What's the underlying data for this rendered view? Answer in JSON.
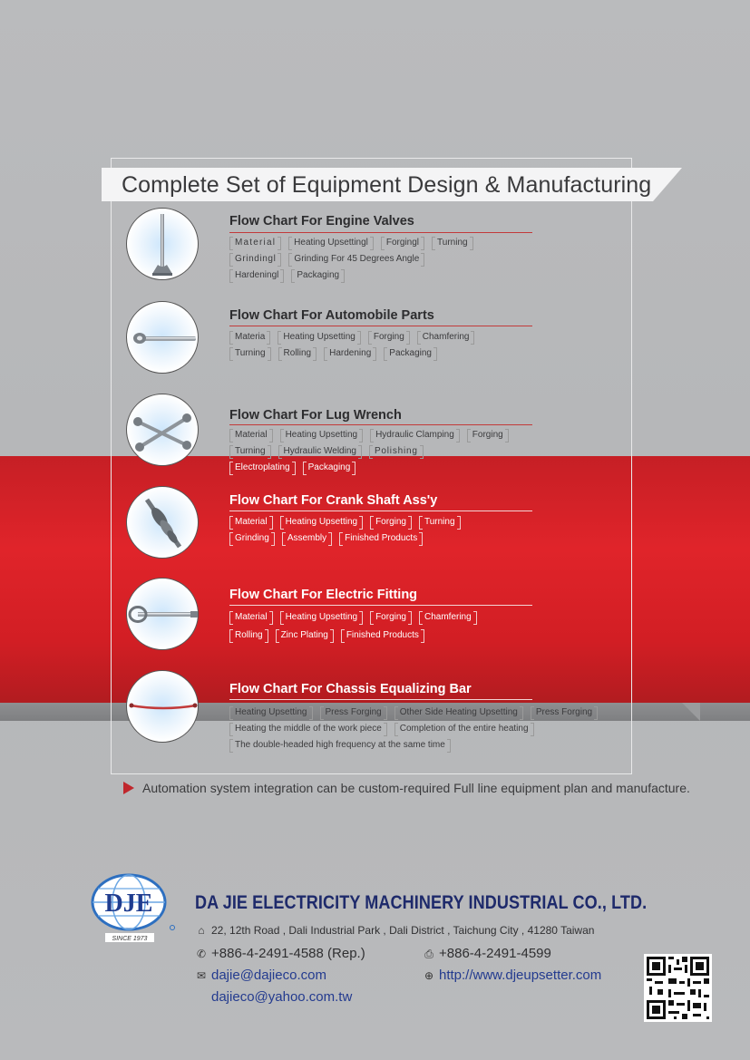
{
  "header": {
    "title": "Complete Set of Equipment Design & Manufacturing"
  },
  "sections": [
    {
      "title": "Flow Chart For Engine Valves",
      "icon": "engine-valve-icon",
      "rows": [
        [
          "Material",
          "Heating Upsettingl",
          "Forgingl",
          "Turning"
        ],
        [
          "Grindingl",
          "Grinding For 45 Degrees Angle"
        ],
        [
          "Hardeningl",
          "Packaging"
        ]
      ]
    },
    {
      "title": "Flow Chart For Automobile Parts",
      "icon": "automobile-part-icon",
      "rows": [
        [
          "Materia",
          "Heating Upsetting",
          "Forging",
          "Chamfering"
        ],
        [
          "Turning",
          "Rolling",
          "Hardening",
          "Packaging"
        ]
      ]
    },
    {
      "title": "Flow Chart For Lug Wrench",
      "icon": "lug-wrench-icon",
      "rows": [
        [
          "Material",
          "Heating Upsetting",
          "Hydraulic Clamping",
          "Forging"
        ],
        [
          "Turning",
          "Hydraulic Welding",
          "Polishing"
        ],
        [
          "Electroplating",
          "Packaging"
        ]
      ]
    },
    {
      "title": "Flow Chart For Crank Shaft Ass'y",
      "icon": "crank-shaft-icon",
      "rows": [
        [
          "Material",
          "Heating Upsetting",
          "Forging",
          "Turning"
        ],
        [
          "Grinding",
          "Assembly",
          "Finished Products"
        ]
      ]
    },
    {
      "title": "Flow Chart For Electric Fitting",
      "icon": "electric-fitting-icon",
      "rows": [
        [
          "Material",
          "Heating Upsetting",
          "Forging",
          "Chamfering"
        ],
        [
          "Rolling",
          "Zinc Plating",
          "Finished Products"
        ]
      ]
    },
    {
      "title": "Flow Chart For Chassis Equalizing Bar",
      "icon": "chassis-bar-icon",
      "rows": [
        [
          "Heating Upsetting",
          "Press Forging",
          "Other Side Heating Upsetting",
          "Press Forging"
        ],
        [
          "Heating the middle of the work piece",
          "Completion of the entire heating"
        ],
        [
          "The double-headed high frequency at the same time"
        ]
      ]
    }
  ],
  "note": "Automation system integration can be custom-required Full line equipment plan and manufacture.",
  "footer": {
    "logo_text": "DJE",
    "logo_since": "SINCE 1973",
    "company": "DA JIE ELECTRICITY MACHINERY INDUSTRIAL CO., LTD.",
    "address": "22, 12th Road , Dali Industrial Park , Dali District , Taichung City , 41280 Taiwan",
    "phone": "+886-4-2491-4588 (Rep.)",
    "fax": "+886-4-2491-4599",
    "email1": "dajie@dajieco.com",
    "email2": "dajieco@yahoo.com.tw",
    "website": "http://www.djeupsetter.com"
  },
  "colors": {
    "accent_red": "#d8232a",
    "brand_blue": "#1e2a6b",
    "link_blue": "#233b8f"
  }
}
